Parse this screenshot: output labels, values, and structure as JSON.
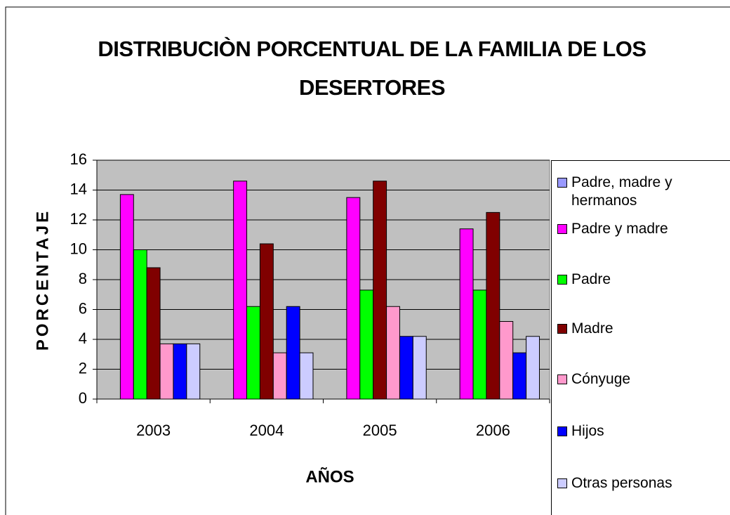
{
  "chart_data": {
    "type": "bar",
    "title": "DISTRIBUCIÒN PORCENTUAL DE LA FAMILIA DE LOS DESERTORES",
    "x_label": "AÑOS",
    "y_label": "PORCENTAJE",
    "categories": [
      "2003",
      "2004",
      "2005",
      "2006"
    ],
    "series": [
      {
        "name": "Padre, madre y hermanos",
        "color": "#9999ff",
        "values": [
          0,
          0,
          0,
          0
        ]
      },
      {
        "name": "Padre y madre",
        "color": "#ff00ff",
        "values": [
          13.7,
          14.6,
          13.5,
          11.4
        ]
      },
      {
        "name": "Padre",
        "color": "#00ff00",
        "values": [
          10,
          6.2,
          7.3,
          7.3
        ]
      },
      {
        "name": "Madre",
        "color": "#800000",
        "values": [
          8.8,
          10.4,
          14.6,
          12.5
        ]
      },
      {
        "name": "Cónyuge",
        "color": "#ff99cc",
        "values": [
          3.7,
          3.1,
          6.2,
          5.2
        ]
      },
      {
        "name": "Hijos",
        "color": "#0000ff",
        "values": [
          3.7,
          6.2,
          4.2,
          3.1
        ]
      },
      {
        "name": "Otras personas",
        "color": "#ccccff",
        "values": [
          3.7,
          3.1,
          4.2,
          4.2
        ]
      }
    ],
    "ylim": [
      0,
      16
    ],
    "yticks": [
      0,
      2,
      4,
      6,
      8,
      10,
      12,
      14,
      16
    ],
    "grid": true,
    "legend": "right"
  }
}
